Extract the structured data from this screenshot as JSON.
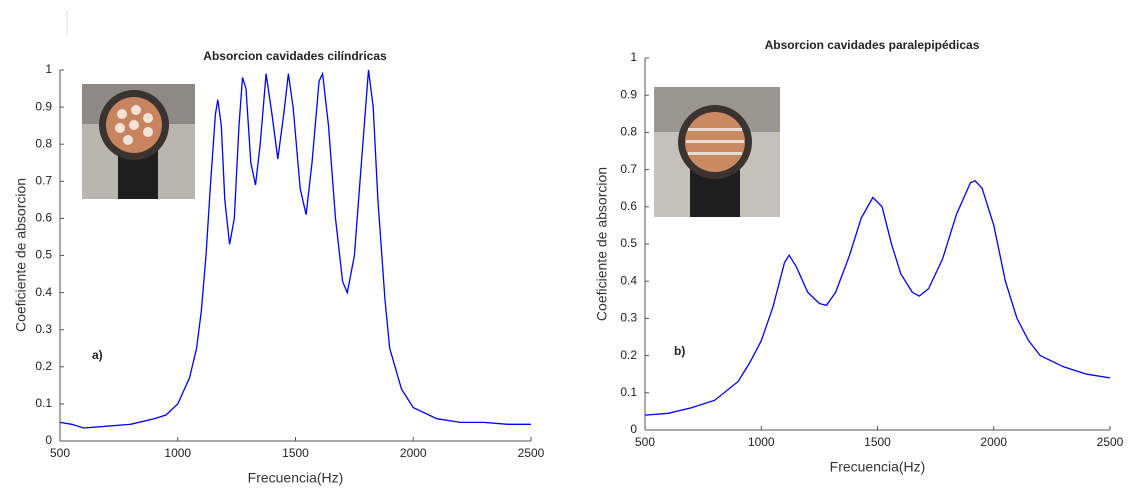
{
  "chart_data": [
    {
      "type": "line",
      "title": "Absorcion cavidades cilíndricas",
      "xlabel": "Frecuencia(Hz)",
      "ylabel": "Coeficiente de absorcion",
      "annotation": "a)",
      "xlim": [
        500,
        2500
      ],
      "xticks": [
        500,
        1000,
        1500,
        2000,
        2500
      ],
      "ylim": [
        0,
        1
      ],
      "yticks": [
        0,
        0.1,
        0.2,
        0.3,
        0.4,
        0.5,
        0.6,
        0.7,
        0.8,
        0.9,
        1
      ],
      "series": [
        {
          "color": "#0000ff",
          "x": [
            500,
            550,
            600,
            700,
            800,
            900,
            950,
            1000,
            1050,
            1080,
            1100,
            1120,
            1140,
            1160,
            1170,
            1185,
            1200,
            1220,
            1240,
            1260,
            1275,
            1290,
            1310,
            1330,
            1350,
            1375,
            1400,
            1425,
            1450,
            1470,
            1490,
            1520,
            1545,
            1570,
            1600,
            1615,
            1640,
            1670,
            1700,
            1720,
            1750,
            1780,
            1810,
            1830,
            1850,
            1880,
            1900,
            1950,
            2000,
            2100,
            2200,
            2300,
            2400,
            2500
          ],
          "y": [
            0.05,
            0.045,
            0.035,
            0.04,
            0.045,
            0.06,
            0.07,
            0.1,
            0.17,
            0.25,
            0.35,
            0.5,
            0.7,
            0.88,
            0.92,
            0.85,
            0.65,
            0.53,
            0.6,
            0.85,
            0.98,
            0.95,
            0.75,
            0.69,
            0.8,
            0.99,
            0.88,
            0.76,
            0.88,
            0.99,
            0.9,
            0.68,
            0.61,
            0.75,
            0.97,
            0.99,
            0.85,
            0.6,
            0.43,
            0.4,
            0.5,
            0.75,
            1.0,
            0.9,
            0.65,
            0.38,
            0.25,
            0.14,
            0.09,
            0.06,
            0.05,
            0.05,
            0.045,
            0.045
          ]
        }
      ]
    },
    {
      "type": "line",
      "title": "Absorcion cavidades paralepipédicas",
      "xlabel": "Frecuencia(Hz)",
      "ylabel": "Coeficiente de absorcion",
      "annotation": "b)",
      "xlim": [
        500,
        2500
      ],
      "xticks": [
        500,
        1000,
        1500,
        2000,
        2500
      ],
      "ylim": [
        0,
        1
      ],
      "yticks": [
        0,
        0.1,
        0.2,
        0.3,
        0.4,
        0.5,
        0.6,
        0.7,
        0.8,
        0.9,
        1
      ],
      "series": [
        {
          "color": "#0000ff",
          "x": [
            500,
            600,
            700,
            800,
            900,
            950,
            1000,
            1050,
            1100,
            1120,
            1150,
            1200,
            1250,
            1280,
            1320,
            1380,
            1430,
            1480,
            1520,
            1560,
            1600,
            1650,
            1680,
            1720,
            1780,
            1840,
            1900,
            1920,
            1950,
            2000,
            2050,
            2100,
            2150,
            2200,
            2300,
            2400,
            2500
          ],
          "y": [
            0.04,
            0.045,
            0.06,
            0.08,
            0.13,
            0.18,
            0.24,
            0.33,
            0.45,
            0.47,
            0.44,
            0.37,
            0.34,
            0.335,
            0.37,
            0.47,
            0.57,
            0.625,
            0.6,
            0.5,
            0.42,
            0.37,
            0.36,
            0.38,
            0.46,
            0.58,
            0.665,
            0.67,
            0.65,
            0.55,
            0.4,
            0.3,
            0.24,
            0.2,
            0.17,
            0.15,
            0.14
          ]
        }
      ]
    }
  ]
}
